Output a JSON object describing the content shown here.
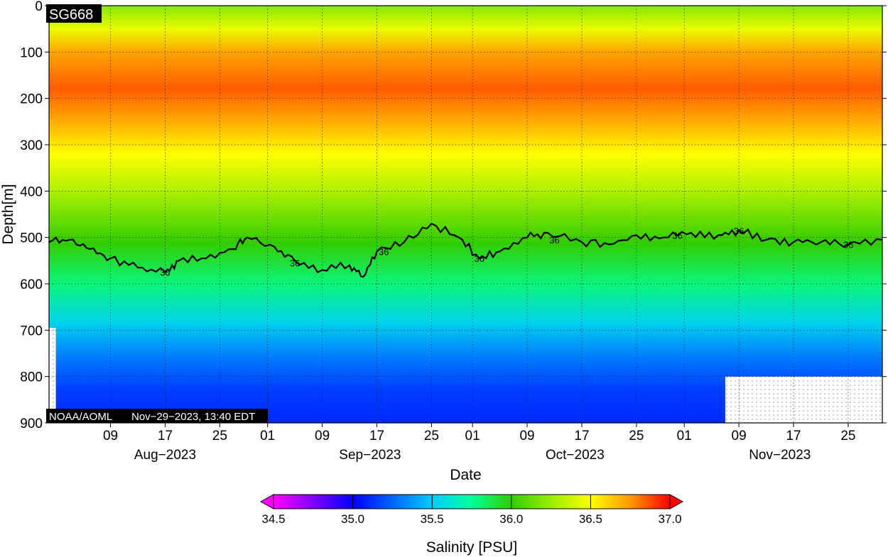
{
  "chart_data": {
    "type": "heatmap",
    "title": "",
    "platform_id": "SG668",
    "credit": "NOAA/AOML",
    "timestamp": "Nov−29−2023, 13:40 EDT",
    "xlabel": "Date",
    "ylabel": "Depth[m]",
    "colorbar_label": "Salinity [PSU]",
    "x_range": [
      "2023-07-31",
      "2023-11-30"
    ],
    "ylim": [
      0,
      900
    ],
    "y_reversed": true,
    "y_ticks": [
      0,
      100,
      200,
      300,
      400,
      500,
      600,
      700,
      800,
      900
    ],
    "y_tick_labels": [
      "0",
      "100",
      "200",
      "300",
      "400",
      "500",
      "600",
      "700",
      "800",
      "900"
    ],
    "x_ticks": [
      {
        "date": "2023-08-09",
        "label": "09"
      },
      {
        "date": "2023-08-17",
        "label": "17"
      },
      {
        "date": "2023-08-25",
        "label": "25"
      },
      {
        "date": "2023-09-01",
        "label": "01"
      },
      {
        "date": "2023-09-09",
        "label": "09"
      },
      {
        "date": "2023-09-17",
        "label": "17"
      },
      {
        "date": "2023-09-25",
        "label": "25"
      },
      {
        "date": "2023-10-01",
        "label": "01"
      },
      {
        "date": "2023-10-09",
        "label": "09"
      },
      {
        "date": "2023-10-17",
        "label": "17"
      },
      {
        "date": "2023-10-25",
        "label": "25"
      },
      {
        "date": "2023-11-01",
        "label": "01"
      },
      {
        "date": "2023-11-09",
        "label": "09"
      },
      {
        "date": "2023-11-17",
        "label": "17"
      },
      {
        "date": "2023-11-25",
        "label": "25"
      }
    ],
    "month_labels": [
      {
        "label": "Aug−2023",
        "date": "2023-08-17"
      },
      {
        "label": "Sep−2023",
        "date": "2023-09-16"
      },
      {
        "label": "Oct−2023",
        "date": "2023-10-16"
      },
      {
        "label": "Nov−2023",
        "date": "2023-11-15"
      }
    ],
    "grid": true,
    "colorbar": {
      "min": 34.5,
      "max": 37.0,
      "ticks": [
        34.5,
        35.0,
        35.5,
        36.0,
        36.5,
        37.0
      ],
      "tick_labels": [
        "34.5",
        "35.0",
        "35.5",
        "36.0",
        "36.5",
        "37.0"
      ],
      "extend": "both",
      "stops": [
        {
          "value": 34.5,
          "color": "#ff00ff"
        },
        {
          "value": 34.75,
          "color": "#8000ff"
        },
        {
          "value": 35.0,
          "color": "#0000ff"
        },
        {
          "value": 35.25,
          "color": "#0066ff"
        },
        {
          "value": 35.5,
          "color": "#00ccff"
        },
        {
          "value": 35.75,
          "color": "#00ff99"
        },
        {
          "value": 36.0,
          "color": "#33cc00"
        },
        {
          "value": 36.25,
          "color": "#99ee00"
        },
        {
          "value": 36.5,
          "color": "#ffff00"
        },
        {
          "value": 36.75,
          "color": "#ff9900"
        },
        {
          "value": 37.0,
          "color": "#ff0000"
        }
      ]
    },
    "contour_label_value": "36",
    "contour_36_line": [
      {
        "date": "2023-07-31",
        "depth": 510
      },
      {
        "date": "2023-08-03",
        "depth": 505
      },
      {
        "date": "2023-08-06",
        "depth": 525
      },
      {
        "date": "2023-08-09",
        "depth": 545
      },
      {
        "date": "2023-08-13",
        "depth": 565
      },
      {
        "date": "2023-08-17",
        "depth": 575
      },
      {
        "date": "2023-08-19",
        "depth": 550
      },
      {
        "date": "2023-08-23",
        "depth": 545
      },
      {
        "date": "2023-08-27",
        "depth": 525
      },
      {
        "date": "2023-08-29",
        "depth": 500
      },
      {
        "date": "2023-09-02",
        "depth": 520
      },
      {
        "date": "2023-09-05",
        "depth": 550
      },
      {
        "date": "2023-09-09",
        "depth": 570
      },
      {
        "date": "2023-09-13",
        "depth": 560
      },
      {
        "date": "2023-09-15",
        "depth": 585
      },
      {
        "date": "2023-09-17",
        "depth": 530
      },
      {
        "date": "2023-09-21",
        "depth": 510
      },
      {
        "date": "2023-09-25",
        "depth": 470
      },
      {
        "date": "2023-09-29",
        "depth": 500
      },
      {
        "date": "2023-10-02",
        "depth": 545
      },
      {
        "date": "2023-10-05",
        "depth": 530
      },
      {
        "date": "2023-10-09",
        "depth": 500
      },
      {
        "date": "2023-10-12",
        "depth": 490
      },
      {
        "date": "2023-10-17",
        "depth": 510
      },
      {
        "date": "2023-10-21",
        "depth": 515
      },
      {
        "date": "2023-10-25",
        "depth": 495
      },
      {
        "date": "2023-10-29",
        "depth": 500
      },
      {
        "date": "2023-11-02",
        "depth": 490
      },
      {
        "date": "2023-11-06",
        "depth": 495
      },
      {
        "date": "2023-11-09",
        "depth": 485
      },
      {
        "date": "2023-11-13",
        "depth": 505
      },
      {
        "date": "2023-11-17",
        "depth": 510
      },
      {
        "date": "2023-11-21",
        "depth": 510
      },
      {
        "date": "2023-11-25",
        "depth": 515
      },
      {
        "date": "2023-11-30",
        "depth": 505
      }
    ],
    "contour_labels_at": [
      {
        "date": "2023-08-17",
        "depth": 575
      },
      {
        "date": "2023-09-05",
        "depth": 555
      },
      {
        "date": "2023-09-18",
        "depth": 530
      },
      {
        "date": "2023-10-02",
        "depth": 545
      },
      {
        "date": "2023-10-13",
        "depth": 505
      },
      {
        "date": "2023-10-31",
        "depth": 495
      },
      {
        "date": "2023-11-09",
        "depth": 485
      },
      {
        "date": "2023-11-25",
        "depth": 515
      }
    ],
    "no_data_regions": [
      {
        "date_start": "2023-07-31",
        "date_end": "2023-08-01",
        "depth_start": 695,
        "depth_end": 900
      },
      {
        "date_start": "2023-11-07",
        "date_end": "2023-11-30",
        "depth_start": 800,
        "depth_end": 900
      }
    ],
    "depth_profile_mean": [
      {
        "depth": 0,
        "salinity": 36.2
      },
      {
        "depth": 50,
        "salinity": 36.45
      },
      {
        "depth": 100,
        "salinity": 36.72
      },
      {
        "depth": 180,
        "salinity": 36.85
      },
      {
        "depth": 250,
        "salinity": 36.7
      },
      {
        "depth": 320,
        "salinity": 36.5
      },
      {
        "depth": 400,
        "salinity": 36.3
      },
      {
        "depth": 510,
        "salinity": 36.0
      },
      {
        "depth": 600,
        "salinity": 35.8
      },
      {
        "depth": 680,
        "salinity": 35.55
      },
      {
        "depth": 760,
        "salinity": 35.3
      },
      {
        "depth": 830,
        "salinity": 35.15
      },
      {
        "depth": 900,
        "salinity": 35.1
      }
    ]
  }
}
